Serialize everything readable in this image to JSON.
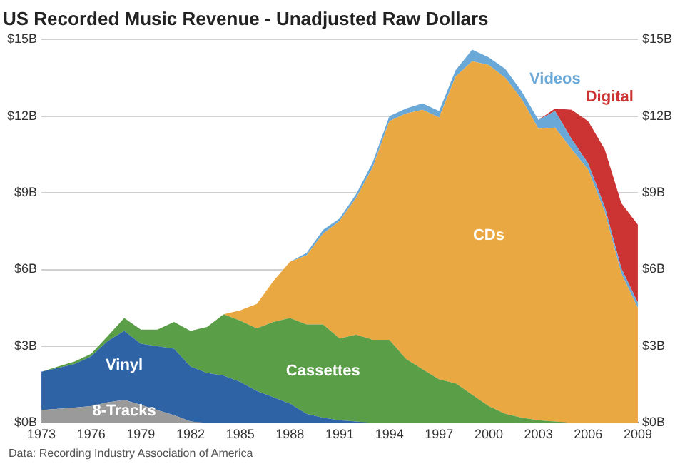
{
  "chart_data": {
    "type": "area",
    "title": "US Recorded Music Revenue - Unadjusted Raw Dollars",
    "stacked": true,
    "x": [
      1973,
      1974,
      1975,
      1976,
      1977,
      1978,
      1979,
      1980,
      1981,
      1982,
      1983,
      1984,
      1985,
      1986,
      1987,
      1988,
      1989,
      1990,
      1991,
      1992,
      1993,
      1994,
      1995,
      1996,
      1997,
      1998,
      1999,
      2000,
      2001,
      2002,
      2003,
      2004,
      2005,
      2006,
      2007,
      2008,
      2009
    ],
    "series": [
      {
        "name": "8-Tracks",
        "color": "#9a9a9a",
        "values": [
          0.5,
          0.55,
          0.6,
          0.65,
          0.8,
          0.9,
          0.7,
          0.5,
          0.3,
          0.05,
          0,
          0,
          0,
          0,
          0,
          0,
          0,
          0,
          0,
          0,
          0,
          0,
          0,
          0,
          0,
          0,
          0,
          0,
          0,
          0,
          0,
          0,
          0,
          0,
          0,
          0,
          0
        ]
      },
      {
        "name": "Vinyl",
        "color": "#2e64a6",
        "values": [
          1.5,
          1.6,
          1.7,
          1.95,
          2.4,
          2.7,
          2.4,
          2.5,
          2.6,
          2.15,
          1.95,
          1.85,
          1.6,
          1.25,
          1.0,
          0.75,
          0.35,
          0.2,
          0.1,
          0.05,
          0,
          0,
          0,
          0,
          0,
          0,
          0,
          0,
          0,
          0,
          0,
          0,
          0,
          0,
          0,
          0,
          0
        ]
      },
      {
        "name": "Cassettes",
        "color": "#5a9e47",
        "values": [
          0,
          0.05,
          0.1,
          0.1,
          0.2,
          0.5,
          0.55,
          0.65,
          1.05,
          1.4,
          1.8,
          2.4,
          2.4,
          2.45,
          2.95,
          3.35,
          3.5,
          3.65,
          3.2,
          3.4,
          3.25,
          3.25,
          2.5,
          2.1,
          1.7,
          1.55,
          1.1,
          0.65,
          0.35,
          0.2,
          0.1,
          0.05,
          0,
          0,
          0,
          0,
          0
        ]
      },
      {
        "name": "CDs",
        "color": "#eaa843",
        "values": [
          null,
          null,
          null,
          null,
          null,
          null,
          null,
          null,
          null,
          null,
          null,
          0,
          0.4,
          0.95,
          1.6,
          2.2,
          2.7,
          3.55,
          4.6,
          5.35,
          6.75,
          8.55,
          9.6,
          10.15,
          10.25,
          12.0,
          13.05,
          13.35,
          13.15,
          12.45,
          11.4,
          11.5,
          10.7,
          9.9,
          8.25,
          5.85,
          4.5
        ]
      },
      {
        "name": "Videos",
        "color": "#6aa8d8",
        "values": [
          null,
          null,
          null,
          null,
          null,
          null,
          null,
          null,
          null,
          null,
          null,
          null,
          null,
          null,
          null,
          0,
          0.1,
          0.15,
          0.1,
          0.15,
          0.2,
          0.2,
          0.2,
          0.25,
          0.25,
          0.25,
          0.45,
          0.3,
          0.35,
          0.3,
          0.35,
          0.65,
          0.4,
          0.25,
          0.2,
          0.2,
          0.2
        ]
      },
      {
        "name": "Digital",
        "color": "#cc3333",
        "values": [
          null,
          null,
          null,
          null,
          null,
          null,
          null,
          null,
          null,
          null,
          null,
          null,
          null,
          null,
          null,
          null,
          null,
          null,
          null,
          null,
          null,
          null,
          null,
          null,
          null,
          null,
          null,
          null,
          null,
          null,
          0,
          0.1,
          1.15,
          1.65,
          2.25,
          2.55,
          3.05
        ]
      }
    ],
    "xlim": [
      1973,
      2009
    ],
    "xticks": [
      1973,
      1976,
      1979,
      1982,
      1985,
      1988,
      1991,
      1994,
      1997,
      2000,
      2003,
      2006,
      2009
    ],
    "ylim": [
      0,
      15
    ],
    "yticks": [
      {
        "value": 0,
        "label": "$0B"
      },
      {
        "value": 3,
        "label": "$3B"
      },
      {
        "value": 6,
        "label": "$6B"
      },
      {
        "value": 9,
        "label": "$9B"
      },
      {
        "value": 12,
        "label": "$12B"
      },
      {
        "value": 15,
        "label": "$15B"
      }
    ],
    "y2lim": [
      0,
      15
    ],
    "y2ticks": [
      {
        "value": 0,
        "label": "$0B"
      },
      {
        "value": 3,
        "label": "$3B"
      },
      {
        "value": 6,
        "label": "$6B"
      },
      {
        "value": 9,
        "label": "$9B"
      },
      {
        "value": 12,
        "label": "$12B"
      },
      {
        "value": 15,
        "label": "$15B"
      }
    ],
    "grid": "y",
    "legend": false,
    "marker": "none",
    "annotations": [
      "Data: Recording Industry Association of America"
    ]
  }
}
